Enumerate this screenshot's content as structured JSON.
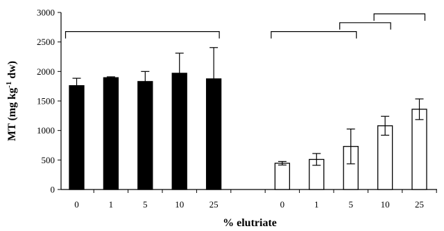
{
  "chart_data": {
    "type": "bar",
    "ylabel": "MT (mg kg-1 dw)",
    "ylabel_parts": {
      "main": "MT (mg kg",
      "sup": "-1",
      "tail": " dw)"
    },
    "xlabel": "% elutriate",
    "ylim": [
      0,
      3000
    ],
    "yticks": [
      0,
      500,
      1000,
      1500,
      2000,
      2500,
      3000
    ],
    "grid": false,
    "legend": "none",
    "colors": {
      "group1_fill": "#000000",
      "group2_fill": "#ffffff",
      "stroke": "#000000"
    },
    "groups": [
      {
        "fill": "black",
        "categories": [
          "0",
          "1",
          "5",
          "10",
          "25"
        ],
        "values": [
          1760,
          1895,
          1830,
          1970,
          1875
        ],
        "errors": [
          125,
          15,
          170,
          340,
          530
        ]
      },
      {
        "fill": "white",
        "categories": [
          "0",
          "1",
          "5",
          "10",
          "25"
        ],
        "values": [
          445,
          510,
          730,
          1080,
          1360
        ],
        "errors": [
          30,
          100,
          295,
          160,
          175
        ]
      }
    ],
    "brackets": [
      {
        "group": 0,
        "from": 0,
        "to": 4,
        "level": 2700
      },
      {
        "group": 1,
        "from": 0,
        "to": 2,
        "level": 2700
      },
      {
        "group": 1,
        "from": 2,
        "to": 3,
        "level": 2850
      },
      {
        "group": 1,
        "from": 3,
        "to": 4,
        "level": 3000
      }
    ]
  }
}
